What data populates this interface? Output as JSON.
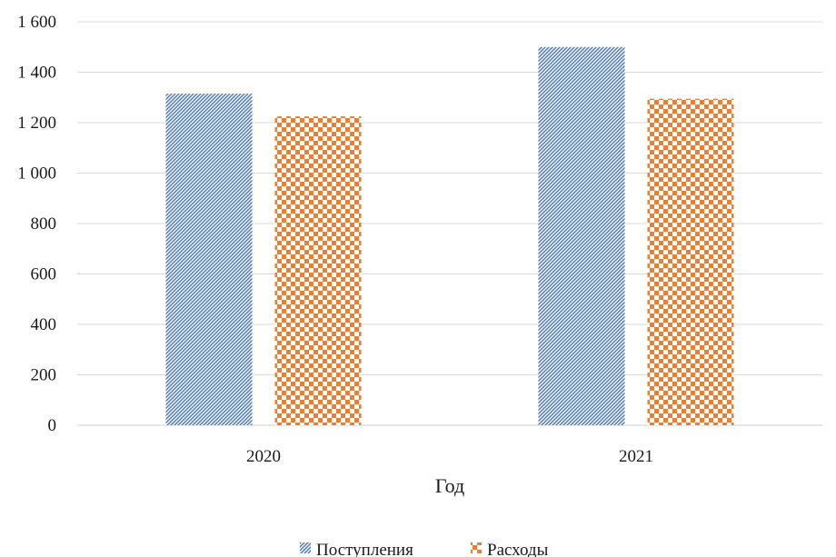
{
  "chart_data": {
    "type": "bar",
    "categories": [
      "2020",
      "2021"
    ],
    "series": [
      {
        "name": "Поступления",
        "values": [
          1315,
          1500
        ],
        "color": "#4472c4",
        "pattern": "diagonal-stripes"
      },
      {
        "name": "Расходы",
        "values": [
          1225,
          1295
        ],
        "color": "#ed7d31",
        "pattern": "checkerboard"
      }
    ],
    "xlabel": "Год",
    "ylabel": "",
    "ylim": [
      0,
      1600
    ],
    "yticks": [
      0,
      200,
      400,
      600,
      800,
      1000,
      1200,
      1400,
      1600
    ],
    "ytick_labels": [
      "0",
      "200",
      "400",
      "600",
      "800",
      "1 000",
      "1 200",
      "1 400",
      "1 600"
    ],
    "grid": true,
    "legend_position": "bottom"
  }
}
